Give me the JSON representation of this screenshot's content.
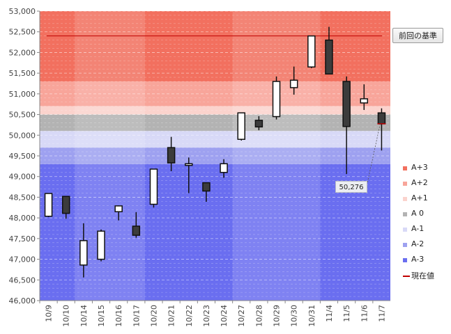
{
  "chart_data": {
    "type": "candlestick",
    "categories": [
      "10/9",
      "10/10",
      "10/14",
      "10/15",
      "10/16",
      "10/17",
      "10/20",
      "10/21",
      "10/22",
      "10/23",
      "10/24",
      "10/27",
      "10/28",
      "10/29",
      "10/30",
      "10/31",
      "11/4",
      "11/5",
      "11/6",
      "11/7"
    ],
    "open": [
      48040,
      48520,
      46860,
      47000,
      48150,
      47800,
      48330,
      49700,
      49270,
      48850,
      49100,
      49900,
      50360,
      50450,
      51150,
      51650,
      52300,
      51300,
      50780,
      50540
    ],
    "high": [
      48590,
      48520,
      47870,
      47720,
      48300,
      48140,
      49180,
      49960,
      49460,
      48860,
      49420,
      50550,
      50460,
      51420,
      51660,
      52400,
      52620,
      51420,
      51230,
      50650
    ],
    "low": [
      48020,
      47980,
      46560,
      46950,
      47940,
      47520,
      48250,
      49130,
      48600,
      48390,
      48970,
      49870,
      50120,
      50380,
      50980,
      51620,
      51480,
      49060,
      50610,
      49630
    ],
    "close": [
      48590,
      48110,
      47450,
      47680,
      48290,
      47580,
      49180,
      49330,
      49310,
      48650,
      49310,
      50540,
      50200,
      51300,
      51330,
      52400,
      51480,
      50210,
      50880,
      50276
    ],
    "ylim": [
      46000,
      53000
    ],
    "yticks": [
      "46,000",
      "46,500",
      "47,000",
      "47,500",
      "48,000",
      "48,500",
      "49,000",
      "49,500",
      "50,000",
      "50,500",
      "51,000",
      "51,500",
      "52,000",
      "52,500",
      "53,000"
    ],
    "ytick_values": [
      46000,
      46500,
      47000,
      47500,
      48000,
      48500,
      49000,
      49500,
      50000,
      50500,
      51000,
      51500,
      52000,
      52500,
      53000
    ],
    "base_line": 52400,
    "current_value": 50276,
    "current_value_label": "50,276",
    "zones": [
      {
        "name": "A+3",
        "from": 51300,
        "to": 53000,
        "color": "#f2705f"
      },
      {
        "name": "A+2",
        "from": 50700,
        "to": 51300,
        "color": "#f8a59a"
      },
      {
        "name": "A+1",
        "from": 50500,
        "to": 50700,
        "color": "#fbd3cd"
      },
      {
        "name": "A 0",
        "from": 50100,
        "to": 50500,
        "color": "#b3b3b3"
      },
      {
        "name": "A-1",
        "from": 49700,
        "to": 50100,
        "color": "#d8d9f7"
      },
      {
        "name": "A-2",
        "from": 49300,
        "to": 49700,
        "color": "#9ea1f0"
      },
      {
        "name": "A-3",
        "from": 46000,
        "to": 49300,
        "color": "#6a6ef0"
      }
    ],
    "legend": [
      {
        "label": "A+3",
        "color": "#f2705f",
        "kind": "box"
      },
      {
        "label": "A+2",
        "color": "#f8a59a",
        "kind": "box"
      },
      {
        "label": "A+1",
        "color": "#fbd3cd",
        "kind": "box"
      },
      {
        "label": "A 0",
        "color": "#b3b3b3",
        "kind": "box"
      },
      {
        "label": "A-1",
        "color": "#d8d9f7",
        "kind": "box"
      },
      {
        "label": "A-2",
        "color": "#9ea1f0",
        "kind": "box"
      },
      {
        "label": "A-3",
        "color": "#6a6ef0",
        "kind": "box"
      },
      {
        "label": "現在値",
        "color": "#c00000",
        "kind": "line"
      }
    ],
    "grid": true,
    "legend_position": "right"
  },
  "base_button_label": "前回の基準"
}
